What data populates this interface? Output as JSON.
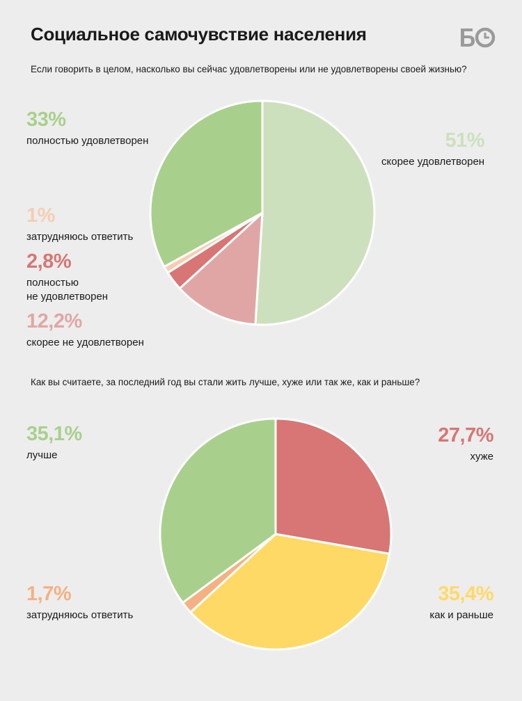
{
  "title": "Социальное самочувствие населения",
  "logo_text": "БО",
  "chart_data": [
    {
      "type": "pie",
      "question": "Если говорить в целом, насколько вы сейчас удовлетворены или не удовлетворены своей жизнью?",
      "slices": [
        {
          "label": "скорее удовлетворен",
          "value": 51,
          "display": "51%",
          "color": "#cce0bd"
        },
        {
          "label": "скорее не удовлетворен",
          "value": 12.2,
          "display": "12,2%",
          "color": "#e0a6a6"
        },
        {
          "label": "полностью\nне удовлетворен",
          "value": 2.8,
          "display": "2,8%",
          "color": "#d77674"
        },
        {
          "label": "затрудняюсь ответить",
          "value": 1,
          "display": "1%",
          "color": "#f6cdb3"
        },
        {
          "label": "полностью удовлетворен",
          "value": 33,
          "display": "33%",
          "color": "#a8d08c"
        }
      ]
    },
    {
      "type": "pie",
      "question": "Как вы считаете, за последний год вы стали жить лучше, хуже или так же, как и раньше?",
      "slices": [
        {
          "label": "хуже",
          "value": 27.7,
          "display": "27,7%",
          "color": "#d77674"
        },
        {
          "label": "как и раньше",
          "value": 35.4,
          "display": "35,4%",
          "color": "#ffd966"
        },
        {
          "label": "затрудняюсь ответить",
          "value": 1.7,
          "display": "1,7%",
          "color": "#f4b183"
        },
        {
          "label": "лучше",
          "value": 35.1,
          "display": "35,1%",
          "color": "#a8d08c"
        }
      ]
    }
  ]
}
